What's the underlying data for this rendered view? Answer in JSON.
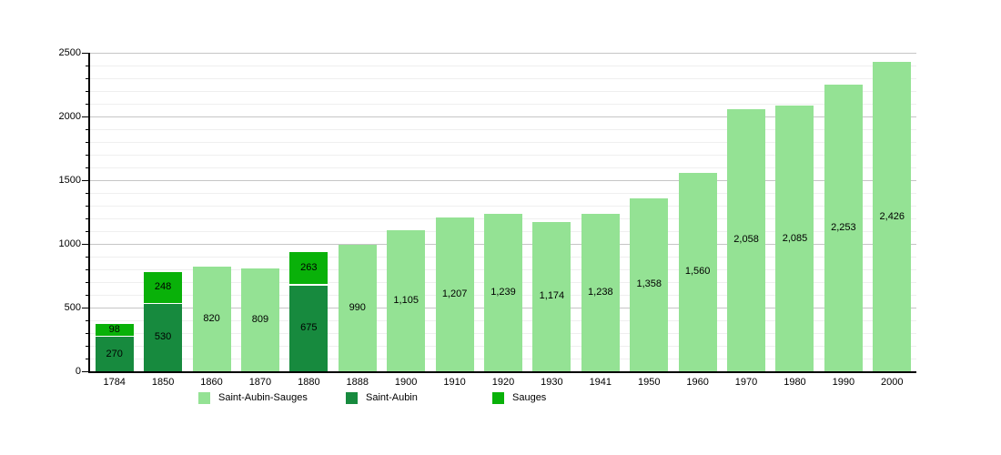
{
  "chart_data": {
    "type": "bar",
    "stacked": true,
    "title": "",
    "xlabel": "",
    "ylabel": "",
    "ylim": [
      0,
      2500
    ],
    "y_major_step": 500,
    "y_minor_step": 100,
    "y_major_ticks": [
      0,
      500,
      1000,
      1500,
      2000,
      2500
    ],
    "grid": {
      "major_color": "#c6c6c6",
      "minor_color": "#efefef",
      "axis_color": "#000000"
    },
    "colors": {
      "Saint-Aubin-Sauges": "#94e294",
      "Saint-Aubin": "#178a3e",
      "Sauges": "#09b109"
    },
    "legend": [
      {
        "label": "Saint-Aubin-Sauges",
        "color": "#94e294"
      },
      {
        "label": "Saint-Aubin",
        "color": "#178a3e"
      },
      {
        "label": "Sauges",
        "color": "#09b109"
      }
    ],
    "categories": [
      "1784",
      "1850",
      "1860",
      "1870",
      "1880",
      "1888",
      "1900",
      "1910",
      "1920",
      "1930",
      "1941",
      "1950",
      "1960",
      "1970",
      "1980",
      "1990",
      "2000"
    ],
    "bars": [
      {
        "year": "1784",
        "segments": [
          {
            "series": "Saint-Aubin",
            "value": 270,
            "display": "270"
          },
          {
            "series": "Sauges",
            "value": 98,
            "display": "98"
          }
        ]
      },
      {
        "year": "1850",
        "segments": [
          {
            "series": "Saint-Aubin",
            "value": 530,
            "display": "530"
          },
          {
            "series": "Sauges",
            "value": 248,
            "display": "248"
          }
        ]
      },
      {
        "year": "1860",
        "segments": [
          {
            "series": "Saint-Aubin-Sauges",
            "value": 820,
            "display": "820"
          }
        ]
      },
      {
        "year": "1870",
        "segments": [
          {
            "series": "Saint-Aubin-Sauges",
            "value": 809,
            "display": "809"
          }
        ]
      },
      {
        "year": "1880",
        "segments": [
          {
            "series": "Saint-Aubin",
            "value": 675,
            "display": "675"
          },
          {
            "series": "Sauges",
            "value": 263,
            "display": "263"
          }
        ]
      },
      {
        "year": "1888",
        "segments": [
          {
            "series": "Saint-Aubin-Sauges",
            "value": 990,
            "display": "990"
          }
        ]
      },
      {
        "year": "1900",
        "segments": [
          {
            "series": "Saint-Aubin-Sauges",
            "value": 1105,
            "display": "1,105"
          }
        ]
      },
      {
        "year": "1910",
        "segments": [
          {
            "series": "Saint-Aubin-Sauges",
            "value": 1207,
            "display": "1,207"
          }
        ]
      },
      {
        "year": "1920",
        "segments": [
          {
            "series": "Saint-Aubin-Sauges",
            "value": 1239,
            "display": "1,239"
          }
        ]
      },
      {
        "year": "1930",
        "segments": [
          {
            "series": "Saint-Aubin-Sauges",
            "value": 1174,
            "display": "1,174"
          }
        ]
      },
      {
        "year": "1941",
        "segments": [
          {
            "series": "Saint-Aubin-Sauges",
            "value": 1238,
            "display": "1,238"
          }
        ]
      },
      {
        "year": "1950",
        "segments": [
          {
            "series": "Saint-Aubin-Sauges",
            "value": 1358,
            "display": "1,358"
          }
        ]
      },
      {
        "year": "1960",
        "segments": [
          {
            "series": "Saint-Aubin-Sauges",
            "value": 1560,
            "display": "1,560"
          }
        ]
      },
      {
        "year": "1970",
        "segments": [
          {
            "series": "Saint-Aubin-Sauges",
            "value": 2058,
            "display": "2,058"
          }
        ]
      },
      {
        "year": "1980",
        "segments": [
          {
            "series": "Saint-Aubin-Sauges",
            "value": 2085,
            "display": "2,085"
          }
        ]
      },
      {
        "year": "1990",
        "segments": [
          {
            "series": "Saint-Aubin-Sauges",
            "value": 2253,
            "display": "2,253"
          }
        ]
      },
      {
        "year": "2000",
        "segments": [
          {
            "series": "Saint-Aubin-Sauges",
            "value": 2426,
            "display": "2,426"
          }
        ]
      }
    ]
  }
}
